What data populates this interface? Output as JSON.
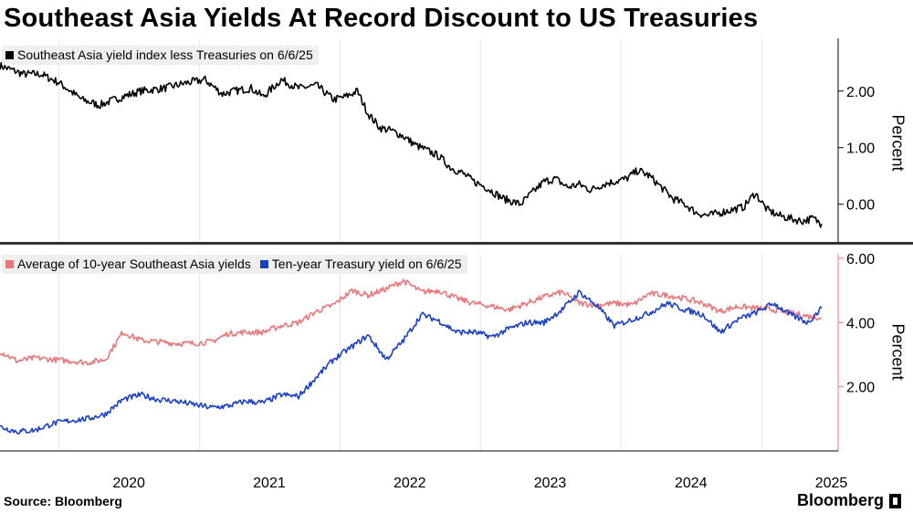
{
  "title": "Southeast Asia Yields At Record Discount to US Treasuries",
  "source": "Source: Bloomberg",
  "brand": "Bloomberg",
  "chart_data": [
    {
      "type": "line",
      "ylabel": "Percent",
      "ylim": [
        -0.65,
        2.9
      ],
      "yticks": [
        "2.00",
        "1.00",
        "0.00"
      ],
      "ytick_values": [
        2,
        1,
        0
      ],
      "grid": false,
      "legend_position": "top-left",
      "x_ticks": [
        "2020",
        "2021",
        "2022",
        "2023",
        "2024",
        "2025"
      ],
      "x_tick_dates": [
        "2020-01-01",
        "2021-01-01",
        "2022-01-01",
        "2023-01-01",
        "2024-01-01",
        "2025-01-01"
      ],
      "series": [
        {
          "name": "Southeast Asia yield index less Treasuries on 6/6/25",
          "color": "#000000",
          "x": [
            "2019-08-01",
            "2019-10-01",
            "2019-11-15",
            "2020-01-01",
            "2020-03-01",
            "2020-04-15",
            "2020-06-15",
            "2020-08-01",
            "2020-10-01",
            "2020-12-01",
            "2021-01-15",
            "2021-03-01",
            "2021-04-01",
            "2021-05-15",
            "2021-06-15",
            "2021-08-01",
            "2021-09-15",
            "2021-11-01",
            "2021-12-15",
            "2022-01-15",
            "2022-02-15",
            "2022-03-15",
            "2022-04-15",
            "2022-05-15",
            "2022-06-15",
            "2022-07-15",
            "2022-08-15",
            "2022-09-15",
            "2022-10-15",
            "2022-11-15",
            "2022-12-15",
            "2023-01-15",
            "2023-03-01",
            "2023-04-15",
            "2023-05-15",
            "2023-06-15",
            "2023-07-15",
            "2023-08-15",
            "2023-09-15",
            "2023-10-15",
            "2023-11-15",
            "2023-12-15",
            "2024-01-15",
            "2024-02-15",
            "2024-03-15",
            "2024-04-15",
            "2024-05-15",
            "2024-06-15",
            "2024-07-15",
            "2024-08-15",
            "2024-09-15",
            "2024-10-15",
            "2024-11-15",
            "2024-12-15",
            "2025-01-15",
            "2025-02-15",
            "2025-03-15",
            "2025-04-15",
            "2025-05-15",
            "2025-06-06"
          ],
          "values": [
            2.45,
            2.3,
            2.3,
            2.15,
            1.85,
            1.75,
            1.9,
            2.0,
            2.05,
            2.15,
            2.2,
            1.95,
            2.0,
            2.05,
            1.9,
            2.2,
            2.05,
            2.1,
            1.85,
            1.9,
            2.0,
            1.6,
            1.35,
            1.3,
            1.2,
            1.05,
            0.95,
            0.85,
            0.65,
            0.55,
            0.4,
            0.3,
            0.1,
            0.0,
            0.2,
            0.4,
            0.45,
            0.3,
            0.35,
            0.25,
            0.35,
            0.4,
            0.45,
            0.6,
            0.5,
            0.3,
            0.1,
            0.0,
            -0.15,
            -0.2,
            -0.15,
            -0.1,
            -0.05,
            0.2,
            -0.1,
            -0.2,
            -0.25,
            -0.3,
            -0.25,
            -0.35
          ]
        }
      ]
    },
    {
      "type": "line",
      "ylabel": "Percent",
      "ylim": [
        0,
        6.0
      ],
      "yticks": [
        "6.00",
        "4.00",
        "2.00"
      ],
      "ytick_values": [
        6,
        4,
        2
      ],
      "grid": false,
      "legend_position": "top-left",
      "x_ticks": [
        "2020",
        "2021",
        "2022",
        "2023",
        "2024",
        "2025"
      ],
      "x_tick_dates": [
        "2020-01-01",
        "2021-01-01",
        "2022-01-01",
        "2023-01-01",
        "2024-01-01",
        "2025-01-01"
      ],
      "series": [
        {
          "name": "Average of 10-year Southeast Asia yields",
          "color": "#e8787c",
          "x": [
            "2019-08-01",
            "2019-09-15",
            "2019-11-01",
            "2019-12-15",
            "2020-02-01",
            "2020-03-15",
            "2020-05-01",
            "2020-06-15",
            "2020-08-01",
            "2020-09-15",
            "2020-11-01",
            "2020-12-15",
            "2021-02-01",
            "2021-03-15",
            "2021-05-01",
            "2021-06-15",
            "2021-08-01",
            "2021-09-15",
            "2021-11-01",
            "2021-12-15",
            "2022-02-01",
            "2022-03-15",
            "2022-05-01",
            "2022-06-15",
            "2022-08-01",
            "2022-09-15",
            "2022-11-01",
            "2022-12-15",
            "2023-02-01",
            "2023-03-15",
            "2023-05-01",
            "2023-06-15",
            "2023-08-01",
            "2023-09-15",
            "2023-11-01",
            "2023-12-15",
            "2024-02-01",
            "2024-03-15",
            "2024-05-01",
            "2024-06-15",
            "2024-08-01",
            "2024-09-15",
            "2024-11-01",
            "2024-12-15",
            "2025-02-01",
            "2025-03-15",
            "2025-05-01",
            "2025-06-06"
          ],
          "values": [
            3.1,
            2.8,
            2.9,
            2.85,
            2.8,
            2.75,
            2.85,
            3.7,
            3.45,
            3.4,
            3.35,
            3.35,
            3.4,
            3.65,
            3.7,
            3.7,
            3.9,
            4.0,
            4.35,
            4.55,
            5.0,
            4.85,
            5.05,
            5.3,
            4.95,
            5.0,
            4.75,
            4.6,
            4.5,
            4.4,
            4.6,
            4.8,
            4.95,
            4.6,
            4.55,
            4.6,
            4.55,
            4.9,
            4.85,
            4.75,
            4.6,
            4.35,
            4.5,
            4.45,
            4.4,
            4.3,
            4.2,
            4.15
          ]
        },
        {
          "name": "Ten-year Treasury yield on 6/6/25",
          "color": "#1a3fc8",
          "x": [
            "2019-08-01",
            "2019-09-15",
            "2019-11-01",
            "2019-12-15",
            "2020-02-01",
            "2020-03-15",
            "2020-05-01",
            "2020-06-15",
            "2020-08-01",
            "2020-09-15",
            "2020-11-01",
            "2020-12-15",
            "2021-02-01",
            "2021-03-15",
            "2021-05-01",
            "2021-06-15",
            "2021-08-01",
            "2021-09-15",
            "2021-11-01",
            "2021-12-15",
            "2022-02-01",
            "2022-03-15",
            "2022-05-01",
            "2022-06-15",
            "2022-08-01",
            "2022-09-15",
            "2022-11-01",
            "2022-12-15",
            "2023-02-01",
            "2023-03-15",
            "2023-05-01",
            "2023-06-15",
            "2023-08-01",
            "2023-09-15",
            "2023-11-01",
            "2023-12-15",
            "2024-02-01",
            "2024-03-15",
            "2024-05-01",
            "2024-06-15",
            "2024-08-01",
            "2024-09-15",
            "2024-11-01",
            "2024-12-15",
            "2025-02-01",
            "2025-03-15",
            "2025-05-01",
            "2025-06-06"
          ],
          "values": [
            0.75,
            0.6,
            0.65,
            0.85,
            0.95,
            1.0,
            1.15,
            1.6,
            1.75,
            1.6,
            1.55,
            1.45,
            1.35,
            1.4,
            1.55,
            1.5,
            1.75,
            1.7,
            2.3,
            2.85,
            3.25,
            3.6,
            2.85,
            3.45,
            4.25,
            4.05,
            3.7,
            3.7,
            3.55,
            3.8,
            4.0,
            4.0,
            4.4,
            4.95,
            4.5,
            3.9,
            4.1,
            4.3,
            4.6,
            4.4,
            4.25,
            3.7,
            4.1,
            4.3,
            4.6,
            4.25,
            4.0,
            4.45
          ]
        }
      ]
    }
  ]
}
